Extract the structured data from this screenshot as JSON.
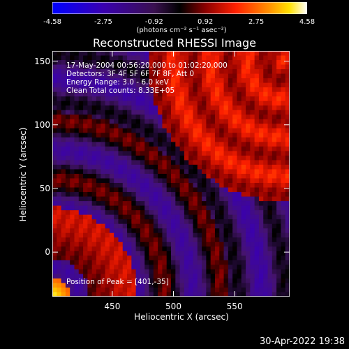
{
  "colorbar": {
    "ticks": [
      "-4.58",
      "-2.75",
      "-0.92",
      "0.92",
      "2.75",
      "4.58"
    ],
    "tick_values": [
      -4.58,
      -2.75,
      -0.92,
      0.92,
      2.75,
      4.58
    ],
    "unit_label": "(photons cm⁻² s⁻¹ asec⁻²)"
  },
  "info": {
    "time_range": "17-May-2004 00:56:20.000 to 01:02:20.000",
    "detectors": "Detectors: 3F 4F 5F 6F 7F 8F, Att 0",
    "energy_range": "Energy Range: 3.0 - 6.0 keV",
    "clean": "Clean     Total counts: 8.33E+05",
    "peak": "Position of Peak = [401,-35]"
  },
  "timestamp": "30-Apr-2022 19:38",
  "chart_data": {
    "type": "heatmap",
    "title": "Reconstructed RHESSI Image",
    "xlabel": "Heliocentric X (arcsec)",
    "ylabel": "Heliocentric Y (arcsec)",
    "xlim": [
      401,
      595
    ],
    "ylim": [
      -35,
      158
    ],
    "xticks": [
      450,
      500,
      550
    ],
    "yticks": [
      0,
      50,
      100,
      150
    ],
    "x_tick_labels": [
      "450",
      "500",
      "550"
    ],
    "y_tick_labels": [
      "0",
      "50",
      "100",
      "150"
    ],
    "zlim": [
      -4.58,
      4.58
    ],
    "colormap": [
      "#0000ff",
      "#4b0082",
      "#000000",
      "#b40000",
      "#ff3000",
      "#ff8c00",
      "#ffd700",
      "#ffffff"
    ],
    "pattern": "concentric rings centred near peak [401,-35]"
  }
}
